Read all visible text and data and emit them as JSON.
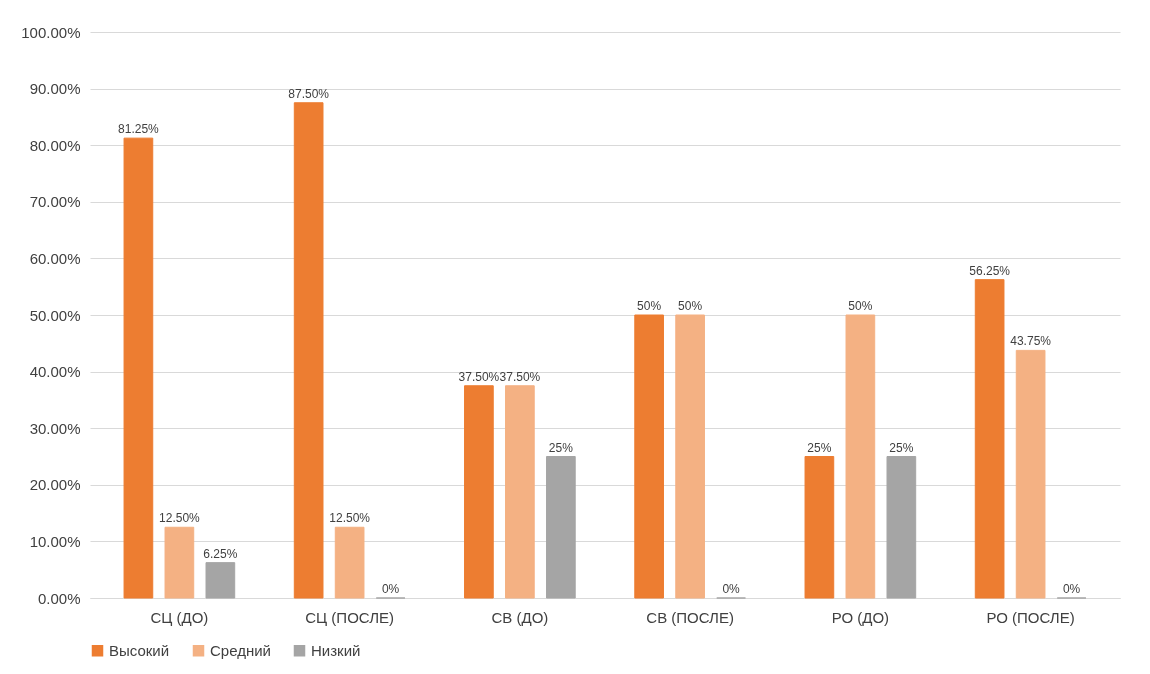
{
  "chart_data": {
    "type": "bar",
    "categories": [
      "СЦ (ДО)",
      "СЦ (ПОСЛЕ)",
      "СВ (ДО)",
      "СВ (ПОСЛЕ)",
      "РО (ДО)",
      "РО (ПОСЛЕ)"
    ],
    "series": [
      {
        "name": "Высокий",
        "color": "#ed7d31",
        "values": [
          81.25,
          87.5,
          37.5,
          50,
          25,
          56.25
        ],
        "value_labels": [
          "81.25%",
          "87.50%",
          "37.50%",
          "50%",
          "25%",
          "56.25%"
        ]
      },
      {
        "name": "Средний",
        "color": "#f4b183",
        "values": [
          12.5,
          12.5,
          37.5,
          50,
          50,
          43.75
        ],
        "value_labels": [
          "12.50%",
          "12.50%",
          "37.50%",
          "50%",
          "50%",
          "43.75%"
        ]
      },
      {
        "name": "Низкий",
        "color": "#a5a5a5",
        "values": [
          6.25,
          0,
          25,
          0,
          25,
          0
        ],
        "value_labels": [
          "6.25%",
          "0%",
          "25%",
          "0%",
          "25%",
          "0%"
        ]
      }
    ],
    "ylim": [
      0,
      100
    ],
    "yticks": [
      {
        "value": 0,
        "label": "0.00%"
      },
      {
        "value": 10,
        "label": "10.00%"
      },
      {
        "value": 20,
        "label": "20.00%"
      },
      {
        "value": 30,
        "label": "30.00%"
      },
      {
        "value": 40,
        "label": "40.00%"
      },
      {
        "value": 50,
        "label": "50.00%"
      },
      {
        "value": 60,
        "label": "60.00%"
      },
      {
        "value": 70,
        "label": "70.00%"
      },
      {
        "value": 80,
        "label": "80.00%"
      },
      {
        "value": 90,
        "label": "90.00%"
      },
      {
        "value": 100,
        "label": "100.00%"
      }
    ],
    "grid": "y",
    "legend": "bottom"
  }
}
